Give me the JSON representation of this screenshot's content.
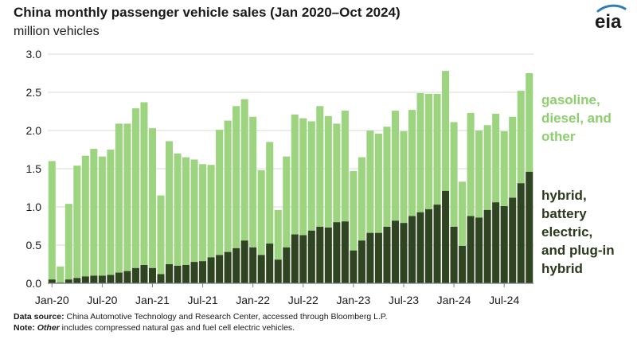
{
  "header": {
    "title": "China monthly passenger vehicle sales (Jan 2020–Oct 2024)",
    "subtitle": "million vehicles",
    "logo_text": "eia"
  },
  "footer": {
    "source_label": "Data source:",
    "source_text": " China Automotive Technology and Research Center, accessed through Bloomberg L.P.",
    "note_label": "Note:",
    "note_italic": " Other",
    "note_text": " includes compressed natural gas and fuel cell electric vehicles."
  },
  "colors": {
    "gasoline": "#9dd47f",
    "hybrid": "#2f4420",
    "grid": "#d9d9d9",
    "logo_swoosh": "#2e7fb8"
  },
  "chart_data": {
    "type": "bar",
    "stacked": true,
    "ylim": [
      0,
      3.0
    ],
    "yticks": [
      "0.0",
      "0.5",
      "1.0",
      "1.5",
      "2.0",
      "2.5",
      "3.0"
    ],
    "xtick_labels": [
      "Jan-20",
      "Jul-20",
      "Jan-21",
      "Jul-21",
      "Jan-22",
      "Jul-22",
      "Jan-23",
      "Jul-23",
      "Jan-24",
      "Jul-24"
    ],
    "xtick_indices": [
      0,
      6,
      12,
      18,
      24,
      30,
      36,
      42,
      48,
      54
    ],
    "grid": true,
    "months": [
      "Jan-20",
      "Feb-20",
      "Mar-20",
      "Apr-20",
      "May-20",
      "Jun-20",
      "Jul-20",
      "Aug-20",
      "Sep-20",
      "Oct-20",
      "Nov-20",
      "Dec-20",
      "Jan-21",
      "Feb-21",
      "Mar-21",
      "Apr-21",
      "May-21",
      "Jun-21",
      "Jul-21",
      "Aug-21",
      "Sep-21",
      "Oct-21",
      "Nov-21",
      "Dec-21",
      "Jan-22",
      "Feb-22",
      "Mar-22",
      "Apr-22",
      "May-22",
      "Jun-22",
      "Jul-22",
      "Aug-22",
      "Sep-22",
      "Oct-22",
      "Nov-22",
      "Dec-22",
      "Jan-23",
      "Feb-23",
      "Mar-23",
      "Apr-23",
      "May-23",
      "Jun-23",
      "Jul-23",
      "Aug-23",
      "Sep-23",
      "Oct-23",
      "Nov-23",
      "Dec-23",
      "Jan-24",
      "Feb-24",
      "Mar-24",
      "Apr-24",
      "May-24",
      "Jun-24",
      "Jul-24",
      "Aug-24",
      "Sep-24",
      "Oct-24"
    ],
    "series": [
      {
        "name": "hybrid,\nbattery\nelectric,\nand plug-in\nhybrid",
        "values": [
          0.05,
          0.01,
          0.05,
          0.07,
          0.09,
          0.1,
          0.1,
          0.11,
          0.14,
          0.16,
          0.2,
          0.24,
          0.2,
          0.12,
          0.25,
          0.23,
          0.24,
          0.28,
          0.29,
          0.34,
          0.37,
          0.41,
          0.46,
          0.56,
          0.47,
          0.37,
          0.52,
          0.31,
          0.47,
          0.64,
          0.63,
          0.69,
          0.74,
          0.73,
          0.8,
          0.81,
          0.43,
          0.56,
          0.66,
          0.66,
          0.74,
          0.82,
          0.79,
          0.88,
          0.93,
          0.97,
          1.03,
          1.21,
          0.74,
          0.49,
          0.88,
          0.86,
          0.96,
          1.06,
          1.01,
          1.12,
          1.31,
          1.46
        ]
      },
      {
        "name": "gasoline,\ndiesel, and\nother",
        "values": [
          1.55,
          0.21,
          0.99,
          1.47,
          1.58,
          1.66,
          1.56,
          1.64,
          1.95,
          1.93,
          2.09,
          2.13,
          1.83,
          1.03,
          1.61,
          1.47,
          1.41,
          1.34,
          1.27,
          1.21,
          1.64,
          1.72,
          1.86,
          1.85,
          1.71,
          1.11,
          1.33,
          0.65,
          1.19,
          1.57,
          1.53,
          1.43,
          1.58,
          1.46,
          1.29,
          1.45,
          1.04,
          1.09,
          1.34,
          1.3,
          1.31,
          1.44,
          1.2,
          1.39,
          1.56,
          1.51,
          1.45,
          1.57,
          1.37,
          0.84,
          1.35,
          1.14,
          1.11,
          1.16,
          0.98,
          1.06,
          1.21,
          1.29
        ]
      }
    ]
  }
}
